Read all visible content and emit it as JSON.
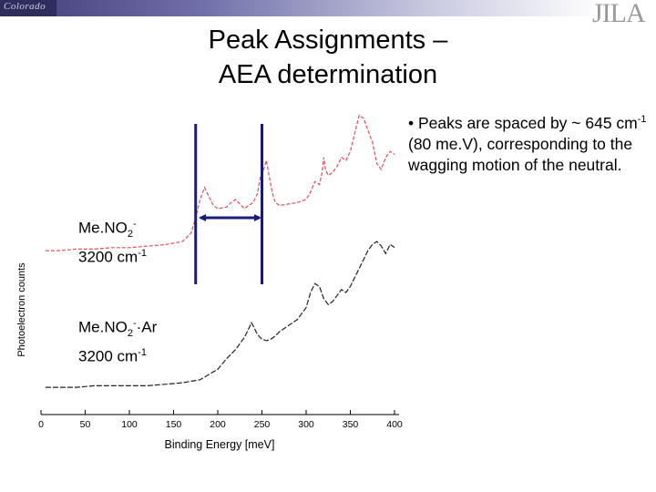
{
  "header": {
    "logo_left_text": "Colorado",
    "logo_right_text": "JILA"
  },
  "slide": {
    "title_line1": "Peak Assignments –",
    "title_line2": "AEA determination",
    "bullet_prefix": "• ",
    "bullet_text1": "Peaks are spaced by ~ 645 cm",
    "bullet_sup": "-1",
    "bullet_text2": " (80 me.V), corresponding to the wagging motion of the neutral."
  },
  "labels": {
    "top": {
      "name": "Me.NO",
      "sub": "2",
      "sup": "-",
      "line2": "3200 cm",
      "line2_sup": "-1"
    },
    "bottom": {
      "name": "Me.NO",
      "sub": "2",
      "sup": "-",
      "suffix": "·Ar",
      "line2": "3200 cm",
      "line2_sup": "-1"
    }
  },
  "colors": {
    "top_trace": "#e0505a",
    "bottom_trace": "#222222",
    "marker_lines": "#1a1a7e"
  },
  "chart_data": {
    "type": "line",
    "xlabel": "Binding Energy [meV]",
    "ylabel": "Photoelectron counts",
    "xlim": [
      0,
      400
    ],
    "xticks": [
      0,
      50,
      100,
      150,
      200,
      250,
      300,
      350,
      400
    ],
    "grid": false,
    "markers_x": [
      175,
      250
    ],
    "series": [
      {
        "name": "Me.NO2- 3200 cm-1",
        "x": [
          5,
          20,
          40,
          60,
          80,
          100,
          120,
          140,
          160,
          170,
          175,
          180,
          185,
          190,
          195,
          200,
          210,
          215,
          220,
          225,
          230,
          240,
          245,
          248,
          252,
          255,
          258,
          262,
          265,
          270,
          280,
          290,
          300,
          305,
          310,
          315,
          318,
          320,
          322,
          325,
          330,
          335,
          340,
          345,
          350,
          355,
          360,
          365,
          370,
          375,
          380,
          385,
          390,
          395,
          400
        ],
        "y": [
          0.06,
          0.06,
          0.07,
          0.07,
          0.08,
          0.08,
          0.09,
          0.1,
          0.12,
          0.18,
          0.28,
          0.4,
          0.48,
          0.42,
          0.36,
          0.34,
          0.35,
          0.38,
          0.4,
          0.37,
          0.34,
          0.38,
          0.44,
          0.55,
          0.6,
          0.66,
          0.56,
          0.44,
          0.38,
          0.36,
          0.37,
          0.38,
          0.4,
          0.45,
          0.52,
          0.5,
          0.58,
          0.68,
          0.6,
          0.56,
          0.58,
          0.62,
          0.68,
          0.66,
          0.72,
          0.84,
          0.96,
          0.94,
          0.86,
          0.78,
          0.64,
          0.6,
          0.68,
          0.72,
          0.7
        ]
      },
      {
        "name": "Me.NO2-·Ar 3200 cm-1",
        "x": [
          5,
          20,
          40,
          60,
          80,
          100,
          120,
          140,
          160,
          180,
          200,
          210,
          220,
          225,
          230,
          235,
          238,
          240,
          245,
          250,
          255,
          260,
          265,
          270,
          280,
          290,
          300,
          305,
          310,
          315,
          320,
          325,
          330,
          335,
          340,
          345,
          350,
          355,
          360,
          365,
          370,
          375,
          380,
          385,
          390,
          395,
          400
        ],
        "y": [
          0.03,
          0.03,
          0.03,
          0.04,
          0.04,
          0.04,
          0.04,
          0.05,
          0.06,
          0.08,
          0.15,
          0.22,
          0.28,
          0.32,
          0.36,
          0.42,
          0.46,
          0.44,
          0.38,
          0.35,
          0.34,
          0.35,
          0.37,
          0.4,
          0.44,
          0.48,
          0.56,
          0.66,
          0.72,
          0.7,
          0.62,
          0.58,
          0.6,
          0.64,
          0.68,
          0.66,
          0.7,
          0.76,
          0.82,
          0.88,
          0.94,
          0.98,
          1.0,
          0.97,
          0.92,
          0.98,
          0.96
        ]
      }
    ]
  }
}
